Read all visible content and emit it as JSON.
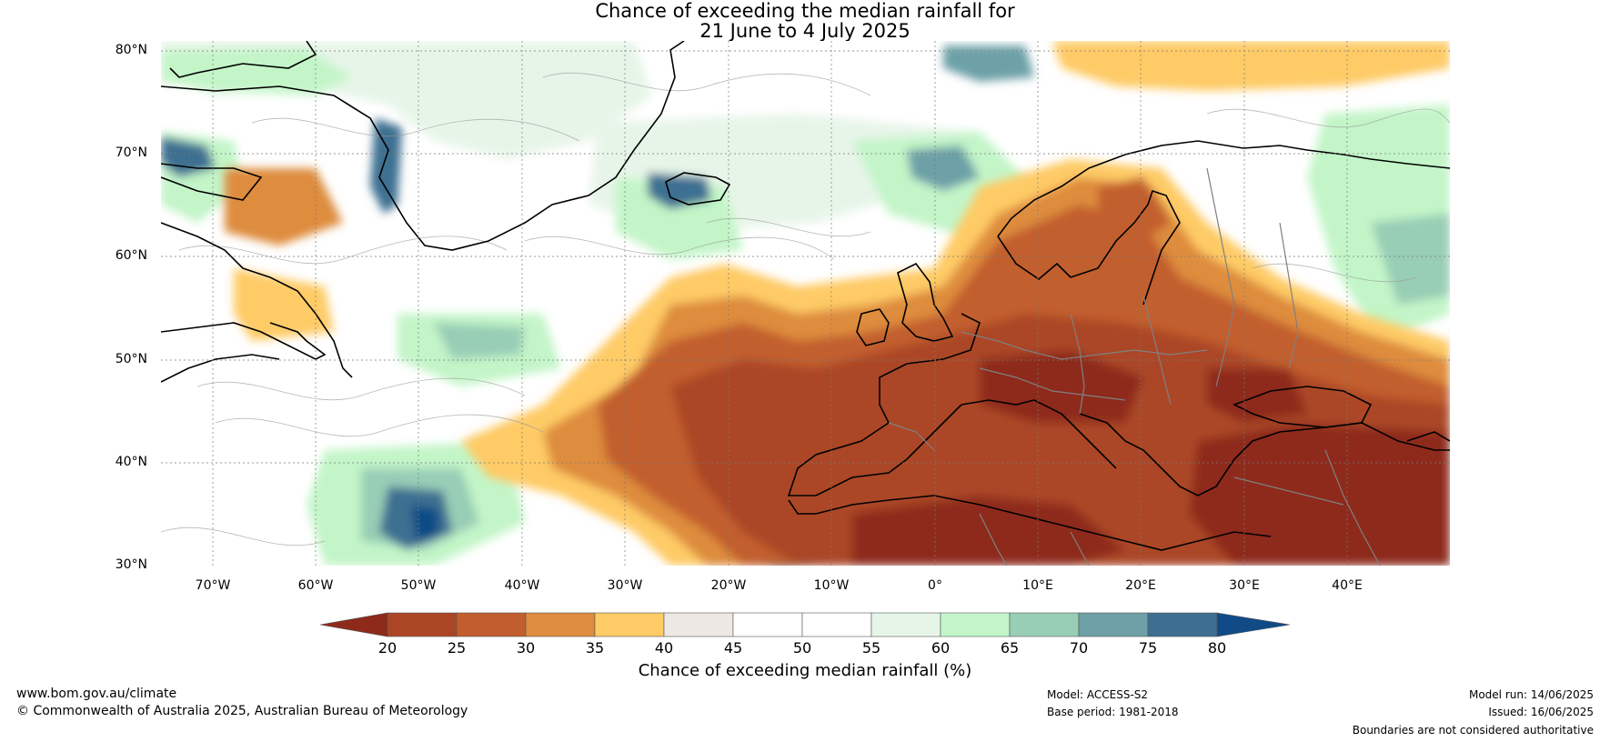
{
  "title": {
    "line1": "Chance of exceeding the median rainfall for",
    "line2": "21 June to 4 July 2025"
  },
  "map": {
    "lat_labels": [
      "80°N",
      "70°N",
      "60°N",
      "50°N",
      "40°N",
      "30°N"
    ],
    "lon_labels": [
      "70°W",
      "60°W",
      "50°W",
      "40°W",
      "30°W",
      "20°W",
      "10°W",
      "0°",
      "10°E",
      "20°E",
      "30°E",
      "40°E"
    ],
    "colors": {
      "very_dry": "#8e2a1a",
      "dry_20_25": "#ab4625",
      "dry_25_30": "#c25e2d",
      "dry_30_35": "#de8c3e",
      "dry_35_40": "#fecb66",
      "neutral_40_45": "#ede8e3",
      "neutral_45_55": "#ffffff",
      "wet_55_60": "#e7f5e8",
      "wet_60_65": "#c3f5c8",
      "wet_65_70": "#98cdb6",
      "wet_70_75": "#6da0a7",
      "wet_75_80": "#3e6f91",
      "very_wet": "#104b87",
      "coastline": "#000000",
      "border": "#808080"
    }
  },
  "colorbar": {
    "ticks": [
      "20",
      "25",
      "30",
      "35",
      "40",
      "45",
      "50",
      "55",
      "60",
      "65",
      "70",
      "75",
      "80"
    ],
    "label": "Chance of exceeding median rainfall (%)"
  },
  "footer": {
    "website": "www.bom.gov.au/climate",
    "copyright": "© Commonwealth of Australia 2025, Australian Bureau of Meteorology",
    "model": "Model: ACCESS-S2",
    "base_period": "Base period: 1981-2018",
    "model_run": "Model run: 14/06/2025",
    "issued": "Issued: 16/06/2025",
    "disclaimer": "Boundaries are not considered authoritative"
  }
}
